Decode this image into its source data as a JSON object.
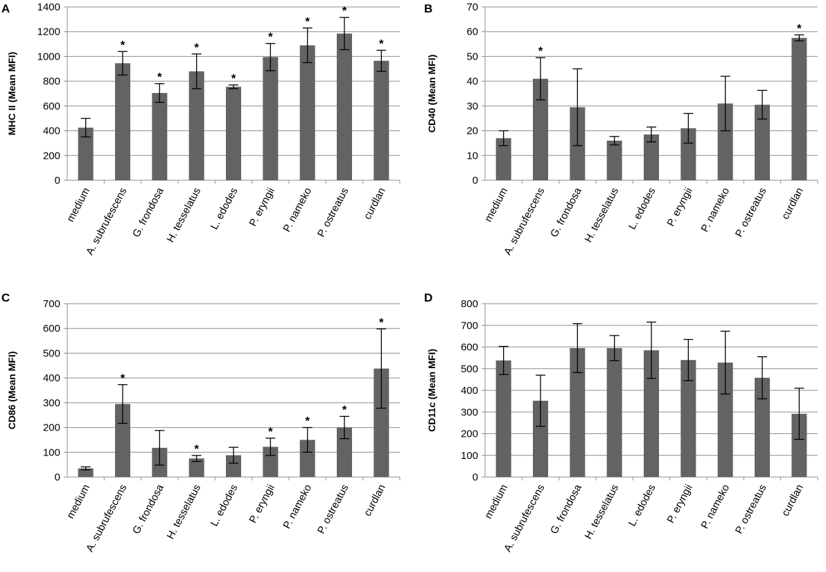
{
  "colors": {
    "bar": "#636363",
    "grid": "#8c8c8c",
    "error": "#000000",
    "text": "#000000"
  },
  "chart_data": [
    {
      "panel": "A",
      "type": "bar",
      "ylabel": "MHC II (Mean MFI)",
      "ylim": [
        0,
        1400
      ],
      "yticks": [
        0,
        200,
        400,
        600,
        800,
        1000,
        1200,
        1400
      ],
      "categories": [
        "medium",
        "A. subrufescens",
        "G. frondosa",
        "H. tesselatus",
        "L. edodes",
        "P. eryngii",
        "P. nameko",
        "P. ostreatus",
        "curdlan"
      ],
      "values": [
        425,
        945,
        705,
        880,
        755,
        995,
        1090,
        1185,
        965
      ],
      "errors": [
        75,
        95,
        75,
        140,
        15,
        110,
        140,
        130,
        85
      ],
      "significant": [
        false,
        true,
        true,
        true,
        true,
        true,
        true,
        true,
        true
      ],
      "sig_marker": "*"
    },
    {
      "panel": "B",
      "type": "bar",
      "ylabel": "CD40 (Mean MFI)",
      "ylim": [
        0,
        70
      ],
      "yticks": [
        0,
        10,
        20,
        30,
        40,
        50,
        60,
        70
      ],
      "categories": [
        "medium",
        "A. subrufescens",
        "G. frondosa",
        "H. tesselatus",
        "L. edodes",
        "P. eryngii",
        "P. nameko",
        "P. ostreatus",
        "curdlan"
      ],
      "values": [
        17,
        41,
        29.5,
        16,
        18.5,
        21,
        31,
        30.5,
        57.5
      ],
      "errors": [
        3,
        8.5,
        15.5,
        1.7,
        3,
        6,
        11,
        5.8,
        1.2
      ],
      "significant": [
        false,
        true,
        false,
        false,
        false,
        false,
        false,
        false,
        true
      ],
      "sig_marker": "*"
    },
    {
      "panel": "C",
      "type": "bar",
      "ylabel": "CD86 (Mean MFI)",
      "ylim": [
        0,
        700
      ],
      "yticks": [
        0,
        100,
        200,
        300,
        400,
        500,
        600,
        700
      ],
      "categories": [
        "medium",
        "A. subrufescens",
        "G. frondosa",
        "H. tesselatus",
        "L. edodes",
        "P. eryngii",
        "P. nameko",
        "P. ostreatus",
        "curdlan"
      ],
      "values": [
        35,
        295,
        118,
        75,
        88,
        122,
        150,
        200,
        438
      ],
      "errors": [
        6,
        78,
        70,
        12,
        32,
        35,
        50,
        45,
        160
      ],
      "significant": [
        false,
        true,
        false,
        true,
        false,
        true,
        true,
        true,
        true
      ],
      "sig_marker": "*"
    },
    {
      "panel": "D",
      "type": "bar",
      "ylabel": "CD11c (Mean MFI)",
      "ylim": [
        0,
        800
      ],
      "yticks": [
        0,
        100,
        200,
        300,
        400,
        500,
        600,
        700,
        800
      ],
      "categories": [
        "medium",
        "A. subrufescens",
        "G. frondosa",
        "H. tesselatus",
        "L. edodes",
        "P. eryngii",
        "P. nameko",
        "P. ostreatus",
        "curdlan"
      ],
      "values": [
        538,
        352,
        595,
        595,
        585,
        540,
        528,
        458,
        292
      ],
      "errors": [
        65,
        118,
        113,
        58,
        130,
        95,
        145,
        97,
        118
      ],
      "significant": [
        false,
        false,
        false,
        false,
        false,
        false,
        false,
        false,
        false
      ],
      "sig_marker": "*"
    }
  ]
}
